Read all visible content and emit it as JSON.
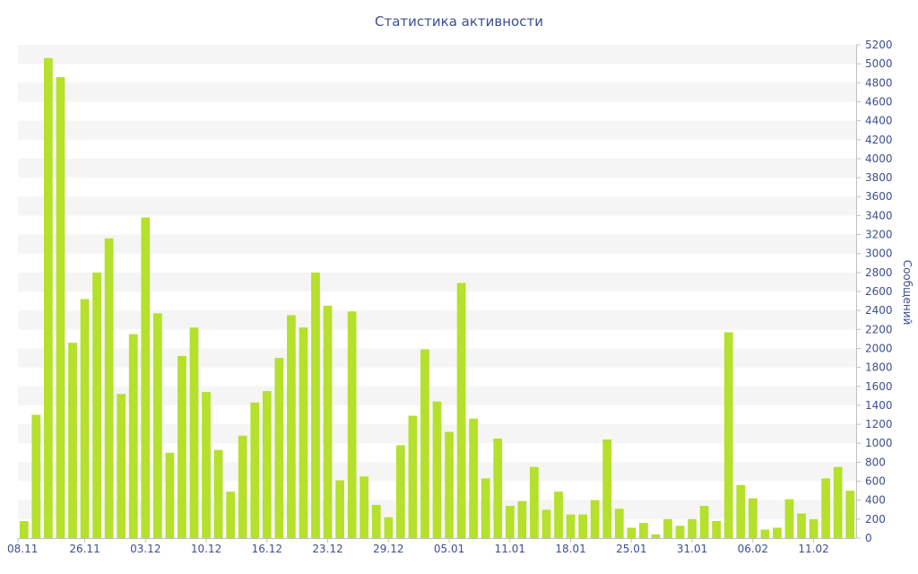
{
  "chart_data": {
    "type": "bar",
    "title": "Статистика активности",
    "xlabel": "",
    "ylabel": "Сообщений",
    "ylim": [
      0,
      5200
    ],
    "y_ticks": [
      0,
      200,
      400,
      600,
      800,
      1000,
      1200,
      1400,
      1600,
      1800,
      2000,
      2200,
      2400,
      2600,
      2800,
      3000,
      3200,
      3400,
      3600,
      3800,
      4000,
      4200,
      4400,
      4600,
      4800,
      5000,
      5200
    ],
    "y_axis_position": "right",
    "grid": "alternating horizontal bands",
    "bar_color": "#b5e02b",
    "band_color": "#f5f5f5",
    "text_color": "#3d4f8f",
    "x_tick_labels": [
      {
        "index": 0,
        "label": "08.11"
      },
      {
        "index": 5,
        "label": "26.11"
      },
      {
        "index": 10,
        "label": "03.12"
      },
      {
        "index": 15,
        "label": "10.12"
      },
      {
        "index": 20,
        "label": "16.12"
      },
      {
        "index": 25,
        "label": "23.12"
      },
      {
        "index": 30,
        "label": "29.12"
      },
      {
        "index": 35,
        "label": "05.01"
      },
      {
        "index": 40,
        "label": "11.01"
      },
      {
        "index": 45,
        "label": "18.01"
      },
      {
        "index": 50,
        "label": "25.01"
      },
      {
        "index": 55,
        "label": "31.01"
      },
      {
        "index": 60,
        "label": "06.02"
      },
      {
        "index": 65,
        "label": "11.02"
      }
    ],
    "values": [
      180,
      1300,
      5060,
      4860,
      2060,
      2520,
      2800,
      3160,
      1520,
      2150,
      3380,
      2370,
      900,
      1920,
      2220,
      1540,
      930,
      490,
      1080,
      1430,
      1550,
      1900,
      2350,
      2220,
      2800,
      2450,
      610,
      2390,
      650,
      350,
      220,
      980,
      1290,
      1990,
      1440,
      1120,
      2690,
      1260,
      630,
      1050,
      340,
      390,
      750,
      300,
      490,
      250,
      250,
      400,
      1040,
      310,
      110,
      160,
      40,
      200,
      130,
      200,
      340,
      180,
      2170,
      560,
      420,
      90,
      110,
      410,
      260,
      200,
      630,
      750,
      500
    ]
  }
}
